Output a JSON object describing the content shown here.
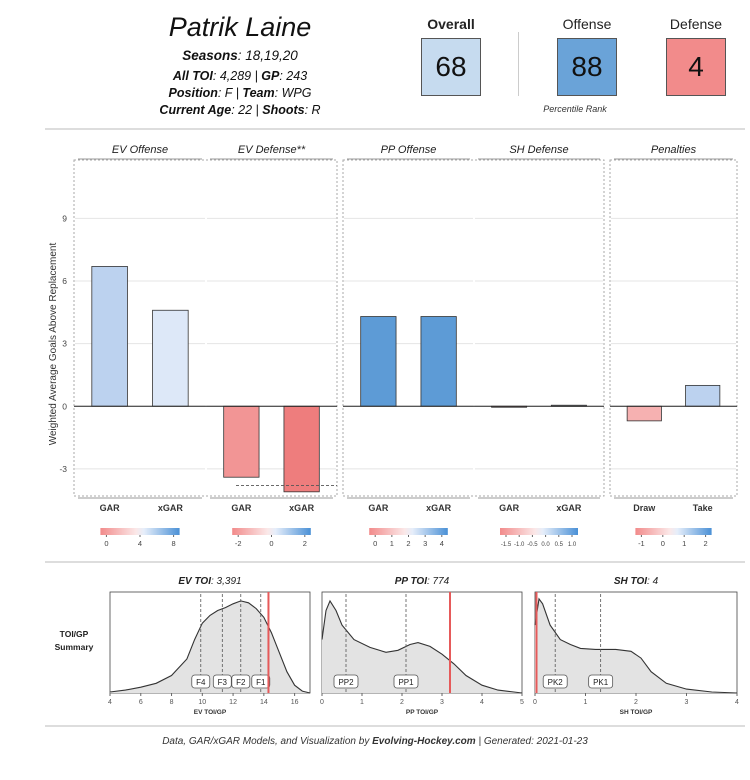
{
  "player": {
    "name": "Patrik Laine",
    "seasons_label": "Seasons",
    "seasons": ": 18,19,20",
    "toi_label": "All TOI",
    "toi": ": 4,289 | ",
    "gp_label": "GP",
    "gp": ": 243",
    "position_label": "Position",
    "position": ": F | ",
    "team_label": "Team",
    "team": ": WPG",
    "age_label": "Current Age",
    "age": ": 22 | ",
    "shoots_label": "Shoots",
    "shoots": ": R"
  },
  "ranks": {
    "overall_label": "Overall",
    "overall": "68",
    "offense_label": "Offense",
    "offense": "88",
    "defense_label": "Defense",
    "defense": "4",
    "percentile_label": "Percentile Rank",
    "colors": {
      "overall": "#c6dbef",
      "offense": "#6aa3d8",
      "defense": "#f28b8b"
    }
  },
  "footer": {
    "prefix": "Data, GAR/xGAR Models, and Visualization by ",
    "site": "Evolving-Hockey.com",
    "suffix": " | Generated: 2021-01-23"
  },
  "chart_data": [
    {
      "type": "bar",
      "ylabel": "Weighted Average Goals Above Replacement",
      "ylim": [
        -4.3,
        11.8
      ],
      "yticks": [
        -3,
        0,
        3,
        6,
        9
      ],
      "grid": true,
      "panels": [
        {
          "title": "EV Offense",
          "categories": [
            "GAR",
            "xGAR"
          ],
          "values": [
            6.7,
            4.6
          ],
          "colors": [
            "#bcd2ef",
            "#dde8f8"
          ],
          "colorbar": {
            "ticks": [
              "0",
              "4",
              "8"
            ]
          }
        },
        {
          "title": "EV Defense**",
          "categories": [
            "GAR",
            "xGAR"
          ],
          "values": [
            -3.4,
            -4.1
          ],
          "colors": [
            "#f29595",
            "#ee7d7d"
          ],
          "reference_line": -3.8,
          "colorbar": {
            "ticks": [
              "-2",
              "0",
              "2"
            ]
          }
        },
        {
          "title": "PP Offense",
          "categories": [
            "GAR",
            "xGAR"
          ],
          "values": [
            4.3,
            4.3
          ],
          "colors": [
            "#5d9bd6",
            "#5d9bd6"
          ],
          "colorbar": {
            "ticks": [
              "0",
              "1",
              "2",
              "3",
              "4"
            ]
          }
        },
        {
          "title": "SH Defense",
          "categories": [
            "GAR",
            "xGAR"
          ],
          "values": [
            0.0,
            0.05
          ],
          "colors": [
            "#f2b3b3",
            "#dde8f8"
          ],
          "colorbar": {
            "ticks": [
              "-1.5",
              "-1.0",
              "-0.5",
              "0.0",
              "0.5",
              "1.0"
            ]
          }
        },
        {
          "title": "Penalties",
          "categories": [
            "Draw",
            "Take"
          ],
          "values": [
            -0.7,
            1.0
          ],
          "colors": [
            "#f6b1b1",
            "#bcd2ef"
          ],
          "colorbar": {
            "ticks": [
              "-1",
              "0",
              "1",
              "2"
            ]
          }
        }
      ]
    },
    {
      "type": "area",
      "row_label": [
        "TOI/GP",
        "Summary"
      ],
      "panels": [
        {
          "title_label": "EV TOI",
          "title_value": ": 3,391",
          "xlabel": "EV TOI/GP",
          "xlim": [
            4,
            17
          ],
          "xticks": [
            4,
            6,
            8,
            10,
            12,
            14,
            16
          ],
          "density": [
            [
              4,
              0.01
            ],
            [
              5,
              0.03
            ],
            [
              6,
              0.06
            ],
            [
              7,
              0.1
            ],
            [
              8,
              0.18
            ],
            [
              9,
              0.35
            ],
            [
              9.5,
              0.55
            ],
            [
              10,
              0.72
            ],
            [
              10.5,
              0.8
            ],
            [
              11,
              0.85
            ],
            [
              11.5,
              0.88
            ],
            [
              12,
              0.92
            ],
            [
              12.5,
              0.95
            ],
            [
              13,
              0.93
            ],
            [
              13.5,
              0.87
            ],
            [
              14,
              0.78
            ],
            [
              14.5,
              0.62
            ],
            [
              15,
              0.42
            ],
            [
              15.5,
              0.22
            ],
            [
              16,
              0.08
            ],
            [
              16.5,
              0.02
            ],
            [
              17,
              0.0
            ]
          ],
          "player_value": 14.3,
          "lines": [
            {
              "label": "F4",
              "x": 9.9
            },
            {
              "label": "F3",
              "x": 11.3
            },
            {
              "label": "F2",
              "x": 12.5
            },
            {
              "label": "F1",
              "x": 13.8
            }
          ]
        },
        {
          "title_label": "PP TOI",
          "title_value": ": 774",
          "xlabel": "PP TOI/GP",
          "xlim": [
            0,
            5
          ],
          "xticks": [
            0,
            1,
            2,
            3,
            4,
            5
          ],
          "density": [
            [
              0,
              0.55
            ],
            [
              0.1,
              0.85
            ],
            [
              0.2,
              0.95
            ],
            [
              0.35,
              0.85
            ],
            [
              0.5,
              0.7
            ],
            [
              0.8,
              0.55
            ],
            [
              1.2,
              0.47
            ],
            [
              1.6,
              0.42
            ],
            [
              1.9,
              0.44
            ],
            [
              2.2,
              0.5
            ],
            [
              2.4,
              0.52
            ],
            [
              2.7,
              0.48
            ],
            [
              3.0,
              0.4
            ],
            [
              3.3,
              0.3
            ],
            [
              3.6,
              0.18
            ],
            [
              4.0,
              0.08
            ],
            [
              4.4,
              0.03
            ],
            [
              4.8,
              0.01
            ],
            [
              5.0,
              0.0
            ]
          ],
          "player_value": 3.2,
          "lines": [
            {
              "label": "PP2",
              "x": 0.6
            },
            {
              "label": "PP1",
              "x": 2.1
            }
          ]
        },
        {
          "title_label": "SH TOI",
          "title_value": ": 4",
          "xlabel": "SH TOI/GP",
          "xlim": [
            0,
            4
          ],
          "xticks": [
            0,
            1,
            2,
            3,
            4
          ],
          "density": [
            [
              0,
              0.7
            ],
            [
              0.08,
              0.97
            ],
            [
              0.15,
              0.92
            ],
            [
              0.3,
              0.7
            ],
            [
              0.5,
              0.55
            ],
            [
              0.7,
              0.5
            ],
            [
              0.9,
              0.46
            ],
            [
              1.2,
              0.45
            ],
            [
              1.6,
              0.45
            ],
            [
              1.9,
              0.43
            ],
            [
              2.1,
              0.36
            ],
            [
              2.3,
              0.22
            ],
            [
              2.6,
              0.1
            ],
            [
              3.0,
              0.04
            ],
            [
              3.5,
              0.01
            ],
            [
              4.0,
              0.0
            ]
          ],
          "player_value": 0.02,
          "lines": [
            {
              "label": "PK2",
              "x": 0.4
            },
            {
              "label": "PK1",
              "x": 1.3
            }
          ]
        }
      ]
    }
  ]
}
